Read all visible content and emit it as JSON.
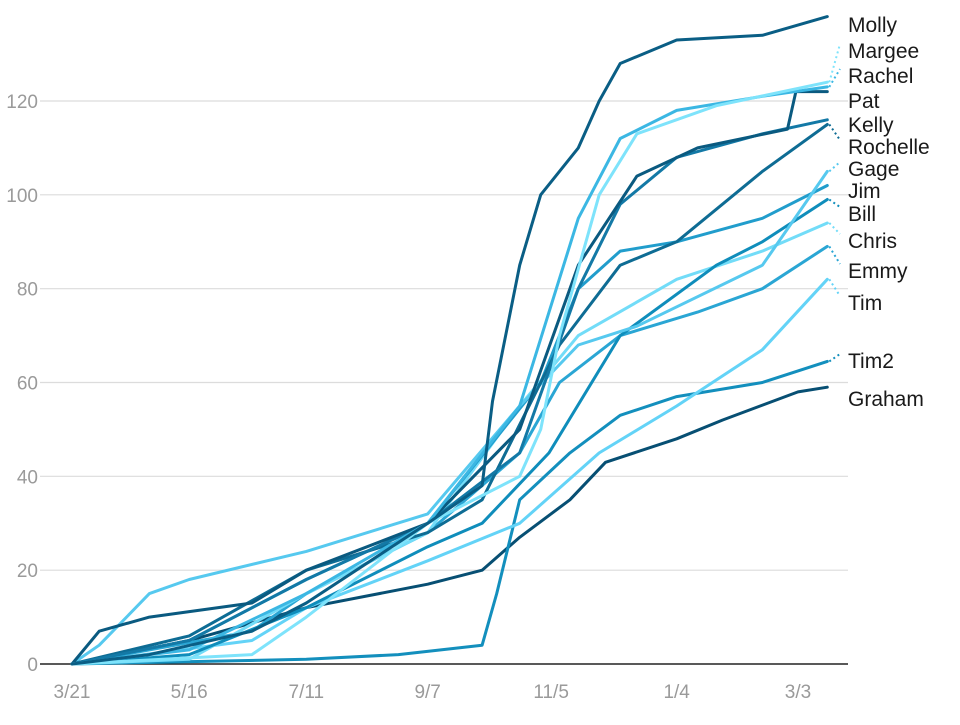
{
  "chart_data": {
    "type": "line",
    "title": "",
    "xlabel": "",
    "ylabel": "",
    "ylim": [
      0,
      138
    ],
    "yticks": [
      "0",
      "20",
      "40",
      "60",
      "80",
      "100",
      "120"
    ],
    "xticks": [
      "3/21",
      "5/16",
      "7/11",
      "9/7",
      "11/5",
      "1/4",
      "3/3"
    ],
    "grid": true,
    "legend": "direct labels at right end of lines",
    "series": [
      {
        "name": "Molly",
        "color": "#0a5e85",
        "points": [
          [
            "3/21",
            0
          ],
          [
            "4/27",
            2
          ],
          [
            "6/15",
            7
          ],
          [
            "7/11",
            13
          ],
          [
            "9/7",
            30
          ],
          [
            "10/3",
            38
          ],
          [
            "10/8",
            56
          ],
          [
            "10/21",
            85
          ],
          [
            "10/31",
            100
          ],
          [
            "11/18",
            110
          ],
          [
            "11/28",
            120
          ],
          [
            "12/8",
            128
          ],
          [
            "1/4",
            133
          ],
          [
            "2/14",
            134
          ],
          [
            "3/17",
            138
          ]
        ]
      },
      {
        "name": "Margee",
        "color": "#7ee3fb",
        "points": [
          [
            "3/21",
            0
          ],
          [
            "6/15",
            2
          ],
          [
            "7/11",
            10
          ],
          [
            "9/7",
            30
          ],
          [
            "10/21",
            40
          ],
          [
            "10/31",
            50
          ],
          [
            "11/9",
            70
          ],
          [
            "11/28",
            100
          ],
          [
            "12/16",
            113
          ],
          [
            "1/23",
            119
          ],
          [
            "3/17",
            124
          ]
        ]
      },
      {
        "name": "Rachel",
        "color": "#3bb7e3",
        "points": [
          [
            "3/21",
            0
          ],
          [
            "5/16",
            3
          ],
          [
            "7/11",
            15
          ],
          [
            "9/7",
            30
          ],
          [
            "10/21",
            55
          ],
          [
            "11/18",
            95
          ],
          [
            "12/8",
            112
          ],
          [
            "1/4",
            118
          ],
          [
            "2/14",
            121
          ],
          [
            "3/17",
            123
          ]
        ]
      },
      {
        "name": "Pat",
        "color": "#0a5a80",
        "points": [
          [
            "3/21",
            0
          ],
          [
            "4/3",
            7
          ],
          [
            "4/27",
            10
          ],
          [
            "6/15",
            13
          ],
          [
            "7/11",
            20
          ],
          [
            "9/7",
            30
          ],
          [
            "10/21",
            50
          ],
          [
            "11/18",
            85
          ],
          [
            "12/16",
            104
          ],
          [
            "1/14",
            110
          ],
          [
            "2/26",
            114
          ],
          [
            "3/2",
            122
          ],
          [
            "3/17",
            122
          ]
        ]
      },
      {
        "name": "Kelly",
        "color": "#1379a6",
        "points": [
          [
            "3/21",
            0
          ],
          [
            "5/16",
            5
          ],
          [
            "7/11",
            18
          ],
          [
            "9/7",
            30
          ],
          [
            "10/21",
            45
          ],
          [
            "11/18",
            80
          ],
          [
            "12/8",
            98
          ],
          [
            "1/4",
            108
          ],
          [
            "2/14",
            113
          ],
          [
            "3/17",
            116
          ]
        ]
      },
      {
        "name": "Rochelle",
        "color": "#0e6c94",
        "points": [
          [
            "3/21",
            0
          ],
          [
            "5/16",
            6
          ],
          [
            "7/11",
            20
          ],
          [
            "9/7",
            28
          ],
          [
            "10/3",
            35
          ],
          [
            "11/9",
            68
          ],
          [
            "12/8",
            85
          ],
          [
            "1/4",
            90
          ],
          [
            "2/14",
            105
          ],
          [
            "3/17",
            115
          ]
        ]
      },
      {
        "name": "Gage",
        "color": "#56c9ef",
        "points": [
          [
            "3/21",
            0
          ],
          [
            "4/3",
            4
          ],
          [
            "4/27",
            15
          ],
          [
            "5/16",
            18
          ],
          [
            "7/11",
            24
          ],
          [
            "9/7",
            32
          ],
          [
            "10/21",
            55
          ],
          [
            "11/18",
            68
          ],
          [
            "12/16",
            72
          ],
          [
            "2/14",
            85
          ],
          [
            "3/17",
            105
          ]
        ]
      },
      {
        "name": "Jim",
        "color": "#219dcc",
        "points": [
          [
            "3/21",
            0
          ],
          [
            "5/16",
            5
          ],
          [
            "7/11",
            18
          ],
          [
            "9/7",
            30
          ],
          [
            "10/31",
            60
          ],
          [
            "11/18",
            80
          ],
          [
            "12/8",
            88
          ],
          [
            "1/4",
            90
          ],
          [
            "2/14",
            95
          ],
          [
            "3/17",
            102
          ]
        ]
      },
      {
        "name": "Bill",
        "color": "#0f8dbb",
        "points": [
          [
            "3/21",
            0
          ],
          [
            "5/16",
            2
          ],
          [
            "7/11",
            12
          ],
          [
            "9/7",
            25
          ],
          [
            "10/3",
            30
          ],
          [
            "11/4",
            45
          ],
          [
            "12/8",
            70
          ],
          [
            "1/23",
            85
          ],
          [
            "2/14",
            90
          ],
          [
            "3/17",
            99
          ]
        ]
      },
      {
        "name": "Chris",
        "color": "#72dcf8",
        "points": [
          [
            "3/21",
            0
          ],
          [
            "5/16",
            1
          ],
          [
            "7/11",
            15
          ],
          [
            "9/7",
            28
          ],
          [
            "10/21",
            55
          ],
          [
            "11/18",
            70
          ],
          [
            "1/4",
            82
          ],
          [
            "2/14",
            88
          ],
          [
            "3/17",
            94
          ]
        ]
      },
      {
        "name": "Emmy",
        "color": "#2aa6d4",
        "points": [
          [
            "3/21",
            0
          ],
          [
            "6/15",
            7
          ],
          [
            "7/11",
            15
          ],
          [
            "9/7",
            28
          ],
          [
            "10/21",
            45
          ],
          [
            "11/9",
            60
          ],
          [
            "12/8",
            70
          ],
          [
            "1/14",
            75
          ],
          [
            "2/14",
            80
          ],
          [
            "3/17",
            89
          ]
        ]
      },
      {
        "name": "Tim",
        "color": "#63d3f7",
        "points": [
          [
            "3/21",
            0
          ],
          [
            "6/15",
            5
          ],
          [
            "7/11",
            12
          ],
          [
            "9/7",
            22
          ],
          [
            "10/21",
            30
          ],
          [
            "11/28",
            45
          ],
          [
            "1/4",
            55
          ],
          [
            "2/14",
            67
          ],
          [
            "3/17",
            82
          ]
        ]
      },
      {
        "name": "Tim2",
        "color": "#138fbd",
        "points": [
          [
            "3/21",
            0
          ],
          [
            "7/11",
            1
          ],
          [
            "8/24",
            2
          ],
          [
            "10/3",
            4
          ],
          [
            "10/10",
            15
          ],
          [
            "10/21",
            35
          ],
          [
            "11/14",
            45
          ],
          [
            "12/8",
            53
          ],
          [
            "1/4",
            57
          ],
          [
            "2/14",
            60
          ],
          [
            "3/17",
            64.5
          ]
        ]
      },
      {
        "name": "Graham",
        "color": "#074f73",
        "points": [
          [
            "3/21",
            0
          ],
          [
            "5/16",
            5
          ],
          [
            "7/11",
            12
          ],
          [
            "9/7",
            17
          ],
          [
            "10/3",
            20
          ],
          [
            "10/21",
            27
          ],
          [
            "11/14",
            35
          ],
          [
            "12/1",
            43
          ],
          [
            "1/4",
            48
          ],
          [
            "1/26",
            52
          ],
          [
            "3/3",
            58
          ],
          [
            "3/17",
            59
          ]
        ]
      }
    ]
  }
}
